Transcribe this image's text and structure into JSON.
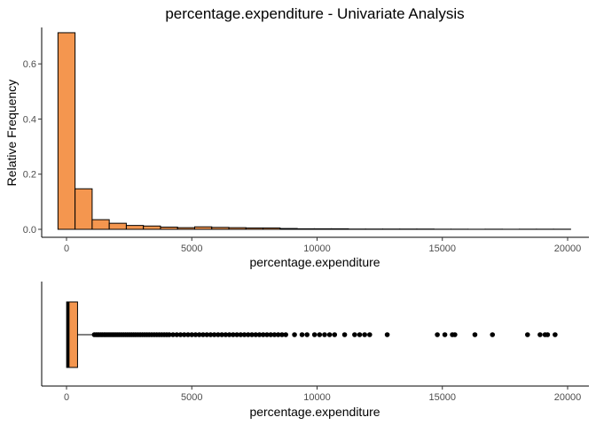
{
  "chart_data": [
    {
      "type": "histogram",
      "title": "percentage.expenditure - Univariate Analysis",
      "xlabel": "percentage.expenditure",
      "ylabel": "Relative Frequency",
      "xlim": [
        -1000,
        20000
      ],
      "ylim": [
        0,
        0.72
      ],
      "xticks": [
        0,
        5000,
        10000,
        15000,
        20000
      ],
      "yticks": [
        0.0,
        0.2,
        0.4,
        0.6
      ],
      "ytick_labels": [
        "0.0",
        "0.2",
        "0.4",
        "0.6"
      ],
      "bin_width": 682,
      "bins_x_start": -341,
      "values": [
        0.713,
        0.147,
        0.035,
        0.022,
        0.014,
        0.012,
        0.008,
        0.006,
        0.009,
        0.007,
        0.006,
        0.005,
        0.005,
        0.003,
        0.002,
        0.002,
        0.002,
        0.001,
        0.001,
        0.001,
        0.001,
        0.001,
        0.0005,
        0.0005,
        0.0003,
        0.0005,
        0.0003,
        0.0005,
        0.0005,
        0.0005
      ],
      "bar_fill": "#F4964F",
      "bar_stroke": "#000000",
      "grid": false
    },
    {
      "type": "boxplot",
      "xlabel": "percentage.expenditure",
      "xlim": [
        -1000,
        20000
      ],
      "xticks": [
        0,
        5000,
        10000,
        15000,
        20000
      ],
      "box": {
        "min": 0,
        "q1": 5,
        "median": 65,
        "q3": 440,
        "whisker_high": 1090
      },
      "outliers": [
        1110,
        1180,
        1240,
        1300,
        1370,
        1430,
        1500,
        1560,
        1630,
        1700,
        1770,
        1840,
        1910,
        1980,
        2050,
        2120,
        2200,
        2280,
        2360,
        2440,
        2520,
        2600,
        2680,
        2760,
        2850,
        2940,
        3030,
        3120,
        3210,
        3300,
        3400,
        3500,
        3600,
        3700,
        3800,
        3900,
        4000,
        4100,
        4250,
        4400,
        4550,
        4700,
        4850,
        5000,
        5150,
        5300,
        5450,
        5600,
        5750,
        5900,
        6050,
        6200,
        6350,
        6500,
        6650,
        6800,
        6950,
        7100,
        7250,
        7400,
        7550,
        7700,
        7850,
        8000,
        8150,
        8300,
        8450,
        8600,
        8750,
        9100,
        9400,
        9600,
        9900,
        10100,
        10300,
        10500,
        10700,
        11100,
        11500,
        11700,
        11900,
        12100,
        12800,
        14800,
        15100,
        15400,
        15500,
        16300,
        17000,
        18400,
        18900,
        19100,
        19200,
        19500
      ],
      "box_fill": "#F4964F",
      "point_color": "#000000",
      "grid": false
    }
  ]
}
